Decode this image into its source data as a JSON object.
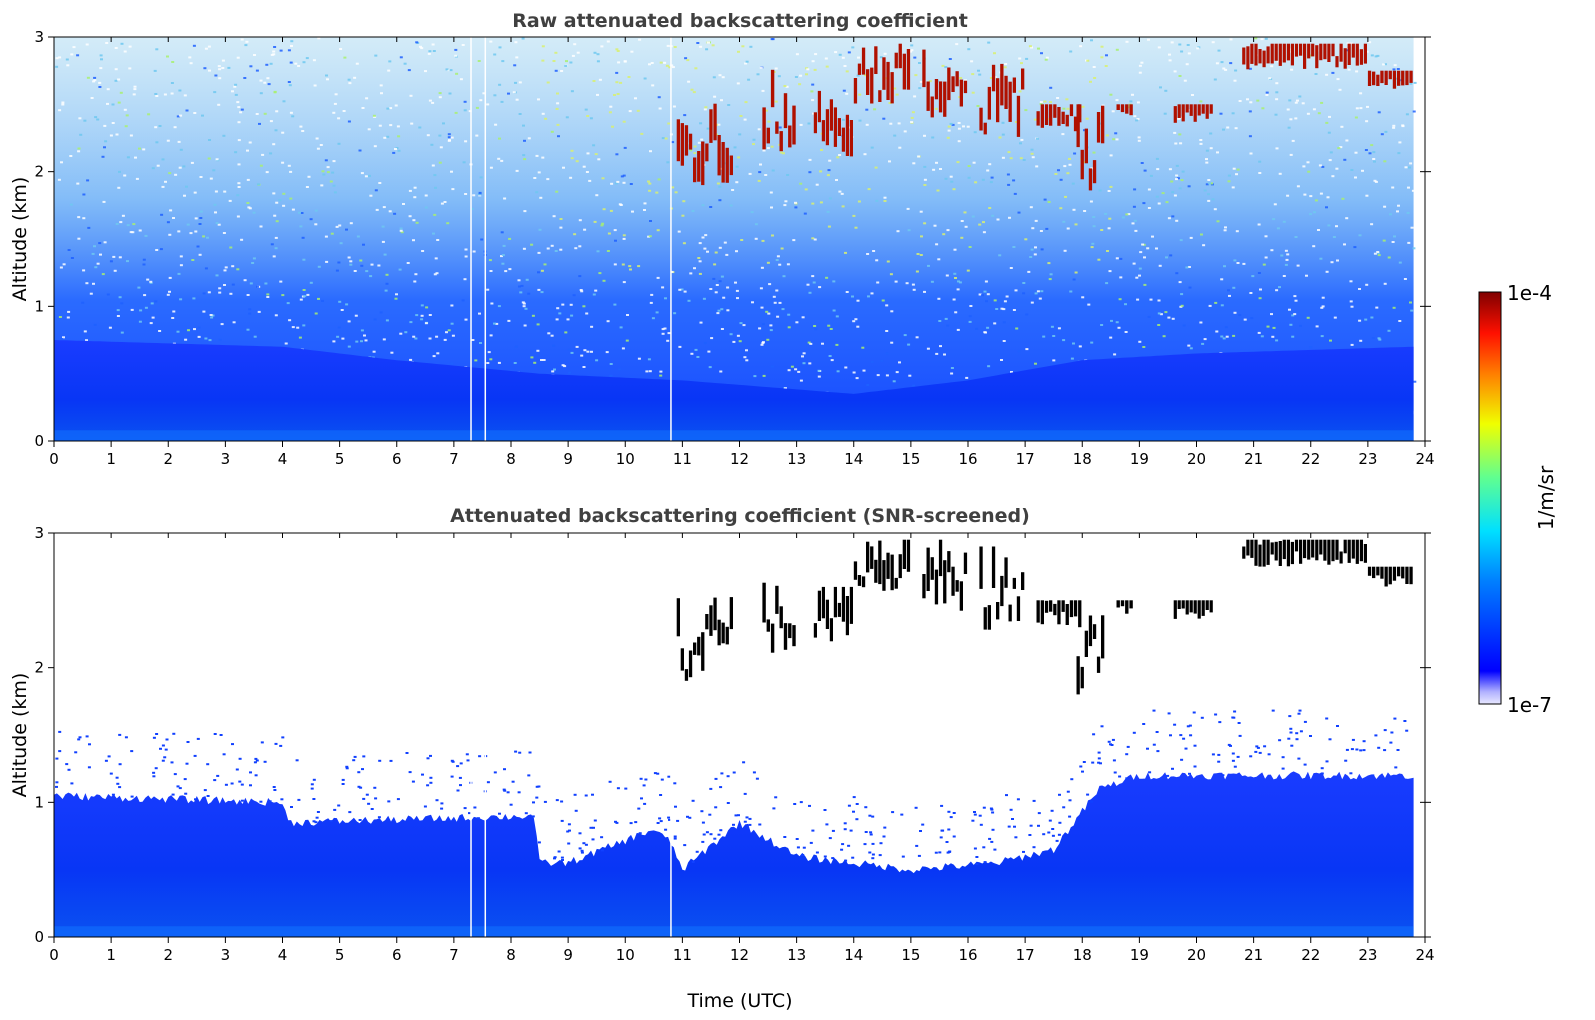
{
  "chart_data": [
    {
      "type": "heatmap",
      "title": "Raw attenuated backscattering coefficient",
      "ylabel": "Altitude (km)",
      "xlabel": "",
      "xlim": [
        0,
        24
      ],
      "ylim": [
        0,
        3
      ],
      "x_ticks": [
        0,
        1,
        2,
        3,
        4,
        5,
        6,
        7,
        8,
        9,
        10,
        11,
        12,
        13,
        14,
        15,
        16,
        17,
        18,
        19,
        20,
        21,
        22,
        23,
        24
      ],
      "y_ticks": [
        0,
        1,
        2,
        3
      ],
      "data_end_time": 23.8,
      "colorbar_ref": "colorbar",
      "features": {
        "boundary_layer_top_km": [
          [
            0,
            0.75
          ],
          [
            4,
            0.7
          ],
          [
            6,
            0.6
          ],
          [
            8.5,
            0.5
          ],
          [
            11,
            0.45
          ],
          [
            14,
            0.35
          ],
          [
            16,
            0.45
          ],
          [
            18,
            0.6
          ],
          [
            20,
            0.65
          ],
          [
            23.8,
            0.7
          ]
        ],
        "cloud_segments": [
          {
            "t_start": 10.9,
            "t_end": 11.9,
            "base_km": 1.9,
            "top_km": 2.6
          },
          {
            "t_start": 12.4,
            "t_end": 13.0,
            "base_km": 2.1,
            "top_km": 2.8
          },
          {
            "t_start": 13.3,
            "t_end": 14.0,
            "base_km": 2.1,
            "top_km": 2.6
          },
          {
            "t_start": 14.0,
            "t_end": 15.0,
            "base_km": 2.5,
            "top_km": 2.95
          },
          {
            "t_start": 15.2,
            "t_end": 16.0,
            "base_km": 2.4,
            "top_km": 2.95
          },
          {
            "t_start": 16.2,
            "t_end": 17.0,
            "base_km": 2.2,
            "top_km": 2.9
          },
          {
            "t_start": 17.2,
            "t_end": 18.0,
            "base_km": 2.3,
            "top_km": 2.5
          },
          {
            "t_start": 17.9,
            "t_end": 18.4,
            "base_km": 1.8,
            "top_km": 2.5
          },
          {
            "t_start": 18.6,
            "t_end": 18.9,
            "base_km": 2.4,
            "top_km": 2.5
          },
          {
            "t_start": 19.6,
            "t_end": 20.3,
            "base_km": 2.35,
            "top_km": 2.5
          },
          {
            "t_start": 20.8,
            "t_end": 23.0,
            "base_km": 2.75,
            "top_km": 2.95
          },
          {
            "t_start": 23.0,
            "t_end": 23.8,
            "base_km": 2.6,
            "top_km": 2.75
          }
        ],
        "data_gaps_utc": [
          7.3,
          7.55,
          10.8
        ]
      }
    },
    {
      "type": "heatmap",
      "title": "Attenuated backscattering coefficient (SNR-screened)",
      "ylabel": "Altitude (km)",
      "xlabel": "Time (UTC)",
      "xlim": [
        0,
        24
      ],
      "ylim": [
        0,
        3
      ],
      "x_ticks": [
        0,
        1,
        2,
        3,
        4,
        5,
        6,
        7,
        8,
        9,
        10,
        11,
        12,
        13,
        14,
        15,
        16,
        17,
        18,
        19,
        20,
        21,
        22,
        23,
        24
      ],
      "y_ticks": [
        0,
        1,
        2,
        3
      ],
      "data_end_time": 23.8,
      "colorbar_ref": "colorbar",
      "features": {
        "screened_signal_top_km": [
          [
            0,
            1.05
          ],
          [
            4,
            1.0
          ],
          [
            4.1,
            0.85
          ],
          [
            8.4,
            0.9
          ],
          [
            8.5,
            0.55
          ],
          [
            9,
            0.55
          ],
          [
            10.5,
            0.8
          ],
          [
            10.8,
            0.7
          ],
          [
            11,
            0.5
          ],
          [
            12,
            0.85
          ],
          [
            13,
            0.6
          ],
          [
            15,
            0.5
          ],
          [
            16.5,
            0.55
          ],
          [
            17.5,
            0.65
          ],
          [
            18.3,
            1.1
          ],
          [
            19,
            1.2
          ],
          [
            23.8,
            1.2
          ]
        ],
        "cloud_segments_screened": "same as raw panel"
      }
    }
  ],
  "colorbar": {
    "label": "1/m/sr",
    "max_label": "1e-4",
    "min_label": "1e-7",
    "scale": "log",
    "vmin": 1e-07,
    "vmax": 0.0001,
    "colormap": "jet"
  },
  "colors": {
    "title": "#404040",
    "background_noise": "#ffffff",
    "boundary_layer": "#0a3cff",
    "aerosol_high": "#1a8cff",
    "cloud": "#b01000",
    "cloud_screened_edge": "#000000"
  }
}
